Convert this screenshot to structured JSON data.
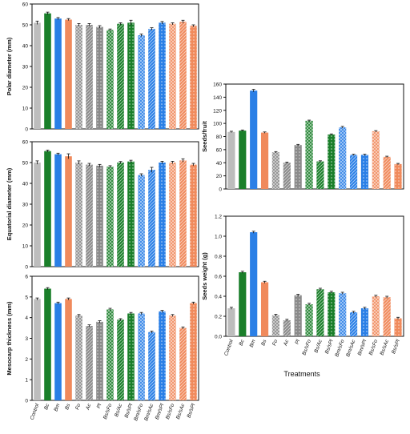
{
  "figure": {
    "x_axis_title": "Treatments",
    "colors": {
      "control": "#bdbdbd",
      "green": "#1a7f2a",
      "blue": "#2a7fe6",
      "orange": "#f08a5c",
      "gray": "#8a8a8a"
    }
  },
  "chart_data": [
    {
      "id": "polar",
      "type": "bar",
      "ylabel": "Polar diameter (mm)",
      "ylim": [
        0,
        60
      ],
      "yticks": [
        0,
        10,
        20,
        30,
        40,
        50,
        60
      ],
      "categories": [
        "Control",
        "Bc",
        "Bm",
        "Bs",
        "Fo",
        "Ac",
        "Pl",
        "Bs/sFo",
        "Bs/Ac",
        "Bs/sPl",
        "Bm/sFo",
        "Bm/sAc",
        "Bm/sPl",
        "Bs/sFo",
        "Bs/sAc",
        "Bs/sPl"
      ],
      "values": [
        51,
        55.5,
        53,
        52.5,
        50,
        50,
        49,
        47.5,
        50.5,
        51,
        45,
        48,
        51,
        50.5,
        51.5,
        49.5
      ],
      "errors": [
        0.8,
        0.6,
        0.5,
        0.5,
        0.6,
        0.6,
        0.6,
        0.5,
        0.5,
        1.2,
        0.6,
        0.6,
        0.6,
        0.5,
        0.7,
        0.5
      ]
    },
    {
      "id": "equatorial",
      "type": "bar",
      "ylabel": "Equatorial diameter (mm)",
      "ylim": [
        0,
        60
      ],
      "yticks": [
        0,
        10,
        20,
        30,
        40,
        50,
        60
      ],
      "categories": [
        "Control",
        "Bc",
        "Bm",
        "Bs",
        "Fo",
        "Ac",
        "Pl",
        "Bs/sFo",
        "Bs/Ac",
        "Bs/sPl",
        "Bm/sFo",
        "Bm/sAc",
        "Bm/sPl",
        "Bs/sFo",
        "Bs/sAc",
        "Bs/sPl"
      ],
      "values": [
        50,
        55.5,
        54,
        53,
        50,
        49,
        48.5,
        48,
        50,
        50.5,
        44,
        46.5,
        50,
        50,
        51,
        49
      ],
      "errors": [
        0.8,
        0.5,
        0.5,
        1.2,
        0.8,
        0.6,
        0.6,
        0.5,
        0.5,
        0.6,
        0.6,
        1.2,
        0.6,
        0.6,
        0.8,
        0.6
      ]
    },
    {
      "id": "mesocarp",
      "type": "bar",
      "ylabel": "Mesocarp thickness (mm)",
      "ylim": [
        0,
        6
      ],
      "yticks": [
        0,
        1,
        2,
        3,
        4,
        5,
        6
      ],
      "categories": [
        "Control",
        "Bc",
        "Bm",
        "Bs",
        "Fo",
        "Ac",
        "Pl",
        "Bs/sFo",
        "Bs/Ac",
        "Bs/sPl",
        "Bm/sFo",
        "Bm/sAc",
        "Bm/sPl",
        "Bs/sFo",
        "Bs/sAc",
        "Bs/sPl"
      ],
      "values": [
        4.9,
        5.4,
        4.7,
        4.9,
        4.1,
        3.6,
        3.8,
        4.4,
        3.9,
        4.2,
        4.2,
        3.3,
        4.3,
        4.1,
        3.5,
        4.7
      ],
      "errors": [
        0.05,
        0.05,
        0.05,
        0.05,
        0.05,
        0.05,
        0.05,
        0.05,
        0.05,
        0.05,
        0.05,
        0.05,
        0.05,
        0.05,
        0.05,
        0.05
      ]
    },
    {
      "id": "seeds_fruit",
      "type": "bar",
      "ylabel": "Seeds/fruit",
      "ylim": [
        0,
        160
      ],
      "yticks": [
        0,
        20,
        40,
        60,
        80,
        100,
        120,
        140,
        160
      ],
      "categories": [
        "Control",
        "Bc",
        "Bm",
        "Bs",
        "Fo",
        "Ac",
        "Pl",
        "Bs/sFo",
        "Bs/Ac",
        "Bs/sPl",
        "Bm/sFo",
        "Bm/sAc",
        "Bm/sPl",
        "Bs/sFo",
        "Bs/sAc",
        "Bs/sPl"
      ],
      "values": [
        87,
        89,
        150,
        86,
        56,
        40,
        67,
        104,
        42,
        83,
        94,
        52,
        52,
        88,
        49,
        38
      ],
      "errors": [
        1,
        1,
        2,
        1,
        1,
        1,
        1,
        1,
        1,
        1,
        1.5,
        1,
        1,
        1,
        1,
        1
      ]
    },
    {
      "id": "seeds_weight",
      "type": "bar",
      "ylabel": "Seeds weight (g)",
      "ylim": [
        0,
        1.2
      ],
      "yticks": [
        0,
        0.2,
        0.4,
        0.6,
        0.8,
        1.0,
        1.2
      ],
      "categories": [
        "Control",
        "Bc",
        "Bm",
        "Bs",
        "Fo",
        "Ac",
        "Pl",
        "Bs/sFo",
        "Bs/Ac",
        "Bs/sPl",
        "Bm/sFo",
        "Bm/sAc",
        "Bm/sPl",
        "Bs/sFo",
        "Bs/sAc",
        "Bs/sPl"
      ],
      "values": [
        0.28,
        0.64,
        1.04,
        0.54,
        0.21,
        0.16,
        0.41,
        0.32,
        0.47,
        0.44,
        0.43,
        0.24,
        0.28,
        0.4,
        0.39,
        0.18
      ],
      "errors": [
        0.01,
        0.01,
        0.01,
        0.01,
        0.01,
        0.01,
        0.01,
        0.01,
        0.01,
        0.01,
        0.01,
        0.01,
        0.01,
        0.01,
        0.01,
        0.01
      ]
    }
  ],
  "categories_visible_labels": [
    "Control",
    "Bc",
    "Bm",
    "Bs",
    "Fo",
    "Ac",
    "Pl",
    "Bs/sFo",
    "Bs/Ac",
    "Bs/sPl",
    "Bm/sFo",
    "Bm/sAc",
    "Bm/sPl",
    "Bs/sFo",
    "Bs/sAc",
    "Bs/sPl"
  ],
  "bar_styles": [
    {
      "color": "control",
      "hatch": "none"
    },
    {
      "color": "green",
      "hatch": "none"
    },
    {
      "color": "blue",
      "hatch": "none"
    },
    {
      "color": "orange",
      "hatch": "none"
    },
    {
      "color": "gray",
      "hatch": "cross"
    },
    {
      "color": "gray",
      "hatch": "diag"
    },
    {
      "color": "gray",
      "hatch": "dots"
    },
    {
      "color": "green",
      "hatch": "cross"
    },
    {
      "color": "green",
      "hatch": "diag"
    },
    {
      "color": "green",
      "hatch": "dots"
    },
    {
      "color": "blue",
      "hatch": "cross"
    },
    {
      "color": "blue",
      "hatch": "diag"
    },
    {
      "color": "blue",
      "hatch": "dots"
    },
    {
      "color": "orange",
      "hatch": "cross"
    },
    {
      "color": "orange",
      "hatch": "diag"
    },
    {
      "color": "orange",
      "hatch": "dots"
    }
  ]
}
